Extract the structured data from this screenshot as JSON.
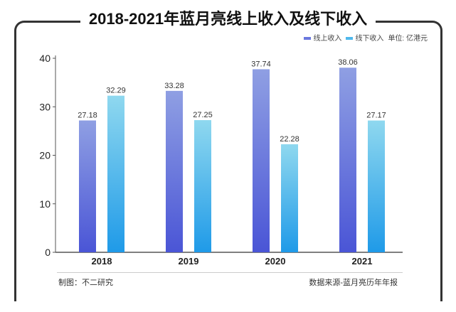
{
  "source_left": "制图：不二研究",
  "source_right": "数据来源-蓝月亮历年年报",
  "unit": "单位: 亿港元",
  "watermark": "不二研究",
  "chart_data": {
    "type": "bar",
    "title": "2018-2021年蓝月亮线上收入及线下收入",
    "categories": [
      "2018",
      "2019",
      "2020",
      "2021"
    ],
    "series": [
      {
        "name": "线上收入",
        "values": [
          27.18,
          33.28,
          37.74,
          38.06
        ],
        "color_top": "#8f9fe3",
        "color_bottom": "#4a55d6"
      },
      {
        "name": "线下收入",
        "values": [
          32.29,
          27.25,
          22.28,
          27.17
        ],
        "color_top": "#8fd8ef",
        "color_bottom": "#1f9ae8"
      }
    ],
    "ylim": [
      0,
      40
    ],
    "yticks": [
      0,
      10,
      20,
      30,
      40
    ],
    "legend": "top-right",
    "grid": false
  }
}
